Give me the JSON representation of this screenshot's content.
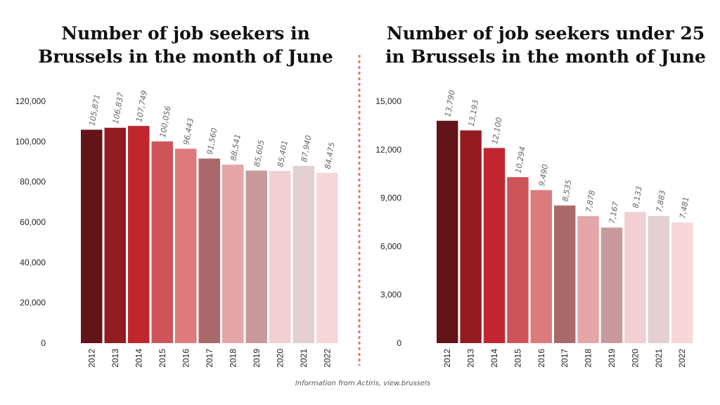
{
  "source": "Information from Actiris, view.brussels",
  "colors": [
    "#621419",
    "#931c21",
    "#c1262e",
    "#cd555a",
    "#dc7a7e",
    "#a9686a",
    "#e4a6a7",
    "#c99a9c",
    "#f1cfd3",
    "#e3d0d2",
    "#f5d7da"
  ],
  "divider_color": "#e07a7a",
  "chart_data": [
    {
      "type": "bar",
      "title_lines": [
        "Number of job seekers in",
        "Brussels in the month of June"
      ],
      "categories": [
        "2012",
        "2013",
        "2014",
        "2015",
        "2016",
        "2017",
        "2018",
        "2019",
        "2020",
        "2021",
        "2022"
      ],
      "values": [
        105871,
        106837,
        107749,
        100056,
        96443,
        91560,
        88541,
        85605,
        85401,
        87940,
        84475
      ],
      "value_labels": [
        "105,871",
        "106,837",
        "107,749",
        "100,056",
        "96,443",
        "91,560",
        "88,541",
        "85,605",
        "85,401",
        "87,940",
        "84,475"
      ],
      "ylim": [
        0,
        120000
      ],
      "yticks": [
        0,
        20000,
        40000,
        60000,
        80000,
        100000,
        120000
      ],
      "ytick_labels": [
        "0",
        "20,000",
        "40,000",
        "60,000",
        "80,000",
        "100,000",
        "120,000"
      ]
    },
    {
      "type": "bar",
      "title_lines": [
        "Number of job seekers under 25",
        "in Brussels in the month of June"
      ],
      "categories": [
        "2012",
        "2013",
        "2014",
        "2015",
        "2016",
        "2017",
        "2018",
        "2019",
        "2020",
        "2021",
        "2022"
      ],
      "values": [
        13790,
        13193,
        12100,
        10294,
        9490,
        8535,
        7878,
        7167,
        8133,
        7883,
        7481
      ],
      "value_labels": [
        "13,790",
        "13,193",
        "12,100",
        "10,294",
        "9,490",
        "8,535",
        "7,878",
        "7,167",
        "8,133",
        "7,883",
        "7,481"
      ],
      "ylim": [
        0,
        15000
      ],
      "yticks": [
        0,
        3000,
        6000,
        9000,
        12000,
        15000
      ],
      "ytick_labels": [
        "0",
        "3,000",
        "6,000",
        "9,000",
        "12,000",
        "15,000"
      ]
    }
  ]
}
